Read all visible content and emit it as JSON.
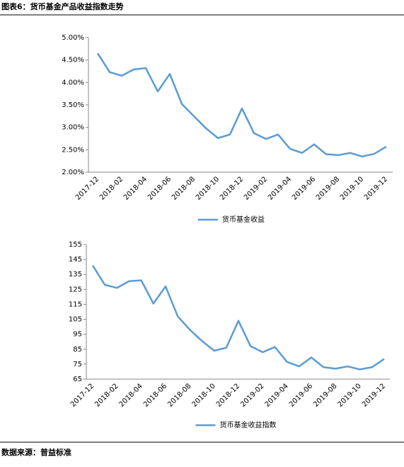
{
  "title": "图表6：货币基金产品收益指数走势",
  "chart_data": [
    {
      "type": "line",
      "categories": [
        "2017-12",
        null,
        "2018-02",
        null,
        "2018-04",
        null,
        "2018-06",
        null,
        "2018-08",
        null,
        "2018-10",
        null,
        "2018-12",
        null,
        "2019-02",
        null,
        "2019-04",
        null,
        "2019-06",
        null,
        "2019-08",
        null,
        "2019-10",
        null,
        "2019-12"
      ],
      "series": [
        {
          "name": "货币基金收益",
          "color": "#5b9bd5",
          "values": [
            4.65,
            4.23,
            4.15,
            4.29,
            4.32,
            3.8,
            4.19,
            3.52,
            3.25,
            2.98,
            2.76,
            2.84,
            3.42,
            2.87,
            2.74,
            2.84,
            2.52,
            2.43,
            2.62,
            2.4,
            2.38,
            2.43,
            2.35,
            2.41,
            2.57
          ]
        }
      ],
      "ylim": [
        2,
        5
      ],
      "yticks": [
        {
          "value": 2,
          "label": "2.00%"
        },
        {
          "value": 2.5,
          "label": "2.50%"
        },
        {
          "value": 3,
          "label": "3.00%"
        },
        {
          "value": 3.5,
          "label": "3.50%"
        },
        {
          "value": 4,
          "label": "4.00%"
        },
        {
          "value": 4.5,
          "label": "4.50%"
        },
        {
          "value": 5,
          "label": "5.00%"
        }
      ],
      "legend": "bottom"
    },
    {
      "type": "line",
      "categories": [
        "2017-12",
        null,
        "2018-02",
        null,
        "2018-04",
        null,
        "2018-06",
        null,
        "2018-08",
        null,
        "2018-10",
        null,
        "2018-12",
        null,
        "2019-02",
        null,
        "2019-04",
        null,
        "2019-06",
        null,
        "2019-08",
        null,
        "2019-10",
        null,
        "2019-12"
      ],
      "series": [
        {
          "name": "货币基金收益指数",
          "color": "#5b9bd5",
          "values": [
            141,
            128,
            126,
            130.5,
            131,
            115.5,
            127,
            107,
            98,
            90.5,
            84,
            86,
            104,
            87,
            83,
            86.5,
            76.5,
            73.5,
            79.5,
            73,
            72,
            73.5,
            71.5,
            73,
            78.5
          ]
        }
      ],
      "ylim": [
        65,
        155
      ],
      "yticks": [
        65,
        75,
        85,
        95,
        105,
        115,
        125,
        135,
        145,
        155
      ],
      "legend": "bottom"
    }
  ],
  "source": "数据来源：普益标准"
}
